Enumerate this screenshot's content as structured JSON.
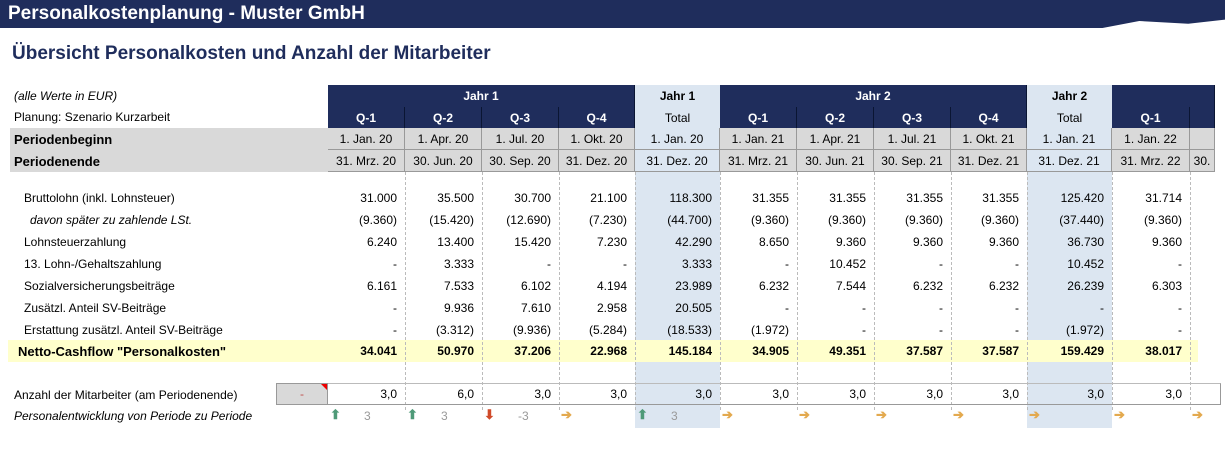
{
  "header": {
    "title": "Personalkostenplanung - Muster GmbH",
    "subtitle": "Übersicht Personalkosten und Anzahl der Mitarbeiter"
  },
  "meta": {
    "unit_note": "(alle Werte in EUR)",
    "scenario": "Planung: Szenario Kurzarbeit"
  },
  "columns": [
    {
      "year": "Jahr 1",
      "q": "Q-1",
      "begin": "1. Jan. 20",
      "end": "31. Mrz. 20",
      "total": false
    },
    {
      "year": "Jahr 1",
      "q": "Q-2",
      "begin": "1. Apr. 20",
      "end": "30. Jun. 20",
      "total": false
    },
    {
      "year": "Jahr 1",
      "q": "Q-3",
      "begin": "1. Jul. 20",
      "end": "30. Sep. 20",
      "total": false
    },
    {
      "year": "Jahr 1",
      "q": "Q-4",
      "begin": "1. Okt. 20",
      "end": "31. Dez. 20",
      "total": false
    },
    {
      "year": "Jahr 1",
      "q": "Total",
      "begin": "1. Jan. 20",
      "end": "31. Dez. 20",
      "total": true
    },
    {
      "year": "Jahr 2",
      "q": "Q-1",
      "begin": "1. Jan. 21",
      "end": "31. Mrz. 21",
      "total": false
    },
    {
      "year": "Jahr 2",
      "q": "Q-2",
      "begin": "1. Apr. 21",
      "end": "30. Jun. 21",
      "total": false
    },
    {
      "year": "Jahr 2",
      "q": "Q-3",
      "begin": "1. Jul. 21",
      "end": "30. Sep. 21",
      "total": false
    },
    {
      "year": "Jahr 2",
      "q": "Q-4",
      "begin": "1. Okt. 21",
      "end": "31. Dez. 21",
      "total": false
    },
    {
      "year": "Jahr 2",
      "q": "Total",
      "begin": "1. Jan. 21",
      "end": "31. Dez. 21",
      "total": true
    },
    {
      "year": "",
      "q": "Q-1",
      "begin": "1. Jan. 22",
      "end": "31. Mrz. 22",
      "total": false
    },
    {
      "year": "",
      "q": "",
      "begin": "",
      "end": "30.",
      "total": false
    }
  ],
  "year_groups": [
    {
      "label": "Jahr 1"
    },
    {
      "label": "Jahr 1"
    },
    {
      "label": "Jahr 2"
    },
    {
      "label": "Jahr 2"
    }
  ],
  "period_labels": {
    "begin": "Periodenbeginn",
    "end": "Periodenende"
  },
  "rows": [
    {
      "label": "Bruttolohn (inkl. Lohnsteuer)",
      "italic": false,
      "values": [
        "31.000",
        "35.500",
        "30.700",
        "21.100",
        "118.300",
        "31.355",
        "31.355",
        "31.355",
        "31.355",
        "125.420",
        "31.714"
      ]
    },
    {
      "label": "davon später zu zahlende LSt.",
      "italic": true,
      "values": [
        "(9.360)",
        "(15.420)",
        "(12.690)",
        "(7.230)",
        "(44.700)",
        "(9.360)",
        "(9.360)",
        "(9.360)",
        "(9.360)",
        "(37.440)",
        "(9.360)"
      ]
    },
    {
      "label": "Lohnsteuerzahlung",
      "italic": false,
      "values": [
        "6.240",
        "13.400",
        "15.420",
        "7.230",
        "42.290",
        "8.650",
        "9.360",
        "9.360",
        "9.360",
        "36.730",
        "9.360"
      ]
    },
    {
      "label": "13. Lohn-/Gehaltszahlung",
      "italic": false,
      "values": [
        "-",
        "3.333",
        "-",
        "-",
        "3.333",
        "-",
        "10.452",
        "-",
        "-",
        "10.452",
        "-"
      ]
    },
    {
      "label": "Sozialversicherungsbeiträge",
      "italic": false,
      "values": [
        "6.161",
        "7.533",
        "6.102",
        "4.194",
        "23.989",
        "6.232",
        "7.544",
        "6.232",
        "6.232",
        "26.239",
        "6.303"
      ]
    },
    {
      "label": "Zusätzl. Anteil SV-Beiträge",
      "italic": false,
      "values": [
        "-",
        "9.936",
        "7.610",
        "2.958",
        "20.505",
        "-",
        "-",
        "-",
        "-",
        "-",
        "-"
      ]
    },
    {
      "label": "Erstattung zusätzl. Anteil SV-Beiträge",
      "italic": false,
      "values": [
        "-",
        "(3.312)",
        "(9.936)",
        "(5.284)",
        "(18.533)",
        "(1.972)",
        "-",
        "-",
        "-",
        "(1.972)",
        "-"
      ]
    }
  ],
  "netto": {
    "label": "Netto-Cashflow \"Personalkosten\"",
    "values": [
      "34.041",
      "50.970",
      "37.206",
      "22.968",
      "145.184",
      "34.905",
      "49.351",
      "37.587",
      "37.587",
      "159.429",
      "38.017"
    ]
  },
  "employees": {
    "label": "Anzahl der Mitarbeiter (am Periodenende)",
    "start": "-",
    "values": [
      "3,0",
      "6,0",
      "3,0",
      "3,0",
      "3,0",
      "3,0",
      "3,0",
      "3,0",
      "3,0",
      "3,0",
      "3,0"
    ]
  },
  "development": {
    "label": "Personalentwicklung von Periode zu Periode",
    "items": [
      {
        "icon": "arrow-up",
        "delta": "3"
      },
      {
        "icon": "arrow-up",
        "delta": "3"
      },
      {
        "icon": "arrow-down",
        "delta": "-3"
      },
      {
        "icon": "arrow-right",
        "delta": ""
      },
      {
        "icon": "arrow-up",
        "delta": "3"
      },
      {
        "icon": "arrow-right",
        "delta": ""
      },
      {
        "icon": "arrow-right",
        "delta": ""
      },
      {
        "icon": "arrow-right",
        "delta": ""
      },
      {
        "icon": "arrow-right",
        "delta": ""
      },
      {
        "icon": "arrow-right",
        "delta": ""
      },
      {
        "icon": "arrow-right",
        "delta": ""
      },
      {
        "icon": "arrow-right",
        "delta": ""
      }
    ]
  },
  "colors": {
    "navy": "#1f2d5c",
    "total_bg": "#dce6f1",
    "netto_bg": "#ffffcc",
    "up": "#4e9a78",
    "down": "#d04a2a",
    "flat": "#e3a94e"
  }
}
